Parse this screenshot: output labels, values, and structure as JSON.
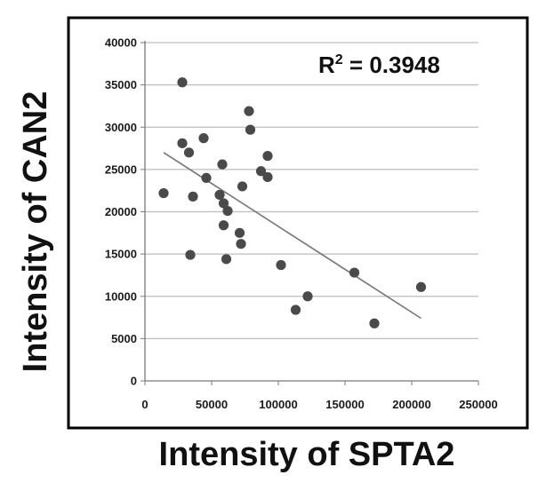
{
  "chart_data": {
    "type": "scatter",
    "title": "",
    "xlabel": "Intensity of SPTA2",
    "ylabel": "Intensity of CAN2",
    "xlim": [
      0,
      250000
    ],
    "ylim": [
      0,
      40000
    ],
    "x_ticks": [
      "0",
      "50000",
      "100000",
      "150000",
      "200000",
      "250000"
    ],
    "y_ticks": [
      "0",
      "5000",
      "10000",
      "15000",
      "20000",
      "25000",
      "30000",
      "35000",
      "40000"
    ],
    "grid": "horizontal",
    "annotation": {
      "base": "R",
      "exponent": "2",
      "value_text": " = 0.3948"
    },
    "series": [
      {
        "points": [
          {
            "x": 28000,
            "y": 35300
          },
          {
            "x": 78000,
            "y": 31900
          },
          {
            "x": 79000,
            "y": 29700
          },
          {
            "x": 44000,
            "y": 28700
          },
          {
            "x": 28000,
            "y": 28100
          },
          {
            "x": 33000,
            "y": 27000
          },
          {
            "x": 92000,
            "y": 26600
          },
          {
            "x": 58000,
            "y": 25600
          },
          {
            "x": 87000,
            "y": 24800
          },
          {
            "x": 92000,
            "y": 24100
          },
          {
            "x": 46000,
            "y": 24000
          },
          {
            "x": 73000,
            "y": 23000
          },
          {
            "x": 14000,
            "y": 22200
          },
          {
            "x": 56000,
            "y": 22000
          },
          {
            "x": 36000,
            "y": 21800
          },
          {
            "x": 59000,
            "y": 21000
          },
          {
            "x": 62000,
            "y": 20100
          },
          {
            "x": 59000,
            "y": 18400
          },
          {
            "x": 71000,
            "y": 17500
          },
          {
            "x": 72000,
            "y": 16200
          },
          {
            "x": 34000,
            "y": 14900
          },
          {
            "x": 61000,
            "y": 14400
          },
          {
            "x": 102000,
            "y": 13700
          },
          {
            "x": 157000,
            "y": 12800
          },
          {
            "x": 207000,
            "y": 11100
          },
          {
            "x": 122000,
            "y": 10000
          },
          {
            "x": 113000,
            "y": 8400
          },
          {
            "x": 172000,
            "y": 6800
          }
        ],
        "color": "#4a4a4a"
      }
    ],
    "trendline": {
      "from": {
        "x": 14000,
        "y": 27000
      },
      "to": {
        "x": 207000,
        "y": 7400
      },
      "color": "#777777"
    },
    "colors": {
      "gridline": "#bdbdbd",
      "frame": "#000000",
      "text": "#111111"
    }
  }
}
